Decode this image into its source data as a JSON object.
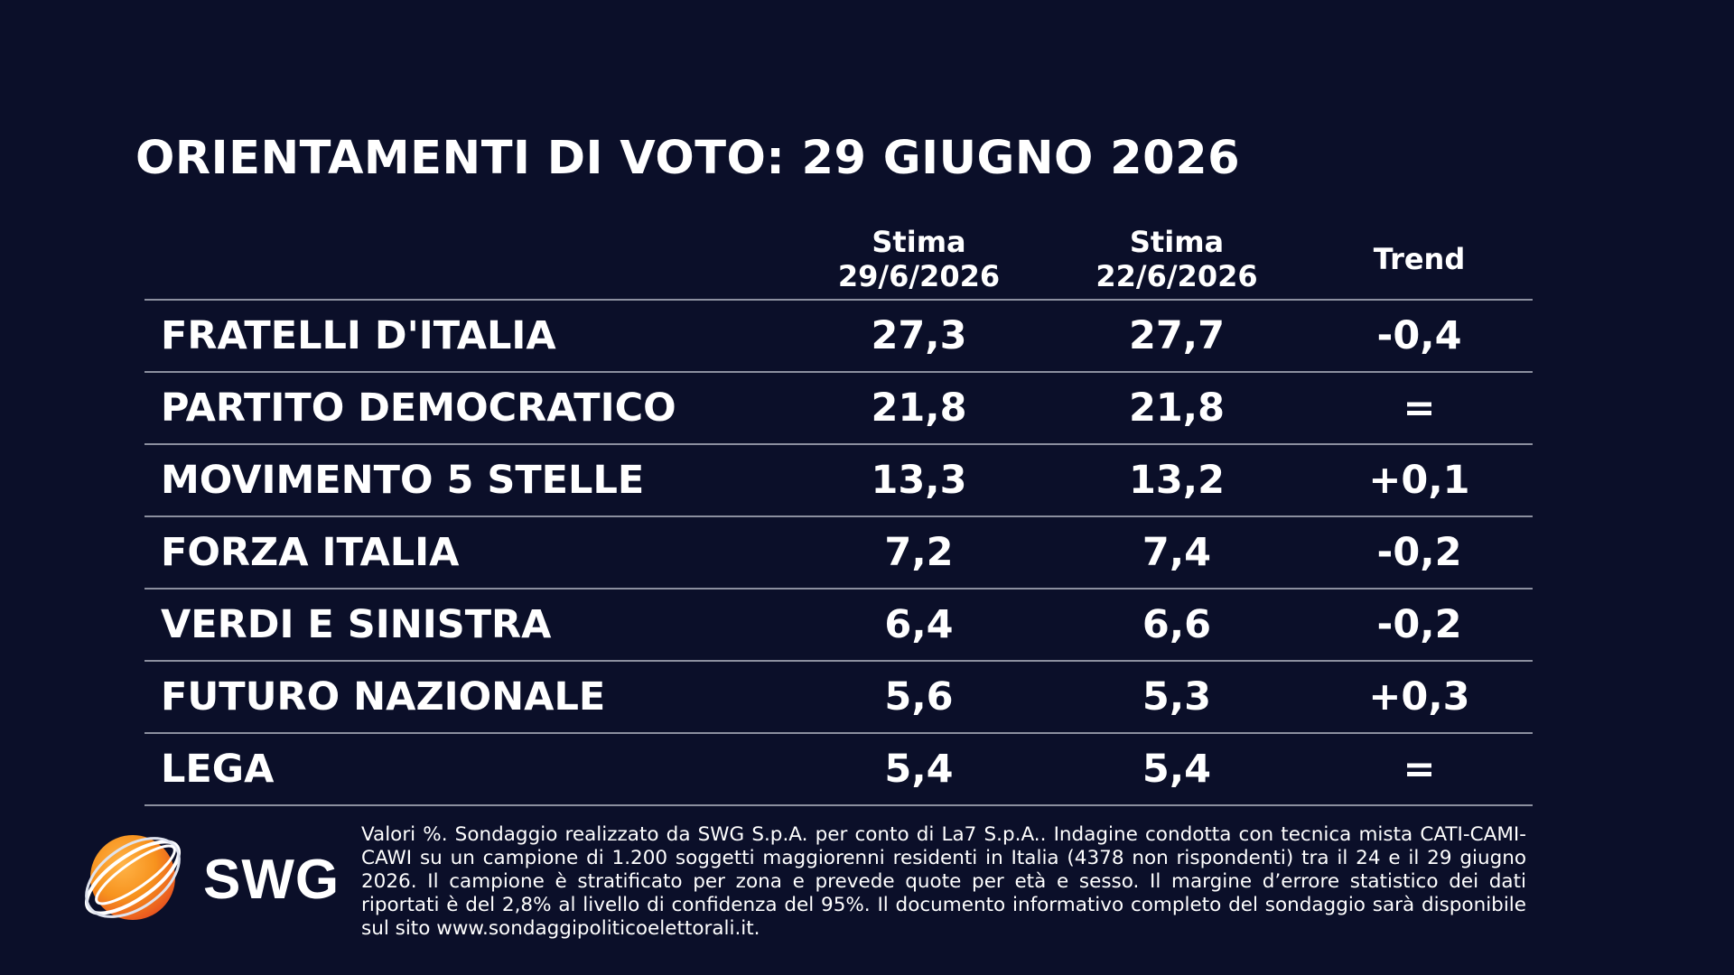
{
  "title": "ORIENTAMENTI DI VOTO: 29 GIUGNO 2026",
  "table": {
    "headers": {
      "col1": [
        "Stima",
        "29/6/2026"
      ],
      "col2": [
        "Stima",
        "22/6/2026"
      ],
      "trend": "Trend"
    },
    "rows": [
      {
        "party": "FRATELLI D'ITALIA",
        "current": "27,3",
        "previous": "27,7",
        "trend": "-0,4"
      },
      {
        "party": "PARTITO DEMOCRATICO",
        "current": "21,8",
        "previous": "21,8",
        "trend": "="
      },
      {
        "party": "MOVIMENTO 5 STELLE",
        "current": "13,3",
        "previous": "13,2",
        "trend": "+0,1"
      },
      {
        "party": "FORZA ITALIA",
        "current": "7,2",
        "previous": "7,4",
        "trend": "-0,2"
      },
      {
        "party": "VERDI E SINISTRA",
        "current": "6,4",
        "previous": "6,6",
        "trend": "-0,2"
      },
      {
        "party": "FUTURO NAZIONALE",
        "current": "5,6",
        "previous": "5,3",
        "trend": "+0,3"
      },
      {
        "party": "LEGA",
        "current": "5,4",
        "previous": "5,4",
        "trend": "="
      }
    ]
  },
  "chart_data": {
    "type": "table",
    "title": "ORIENTAMENTI DI VOTO: 29 GIUGNO 2026",
    "columns": [
      "",
      "Stima 29/6/2026",
      "Stima 22/6/2026",
      "Trend"
    ],
    "categories": [
      "FRATELLI D'ITALIA",
      "PARTITO DEMOCRATICO",
      "MOVIMENTO 5 STELLE",
      "FORZA ITALIA",
      "VERDI E SINISTRA",
      "FUTURO NAZIONALE",
      "LEGA"
    ],
    "series": [
      {
        "name": "Stima 29/6/2026",
        "values": [
          27.3,
          21.8,
          13.3,
          7.2,
          6.4,
          5.6,
          5.4
        ]
      },
      {
        "name": "Stima 22/6/2026",
        "values": [
          27.7,
          21.8,
          13.2,
          7.4,
          6.6,
          5.3,
          5.4
        ]
      },
      {
        "name": "Trend",
        "values": [
          "-0,4",
          "=",
          "+0,1",
          "-0,2",
          "-0,2",
          "+0,3",
          "="
        ]
      }
    ]
  },
  "logo": {
    "text": "SWG",
    "colors": {
      "sphere": "#f7931e",
      "sphere_dark": "#e8531f",
      "ring": "#ffffff"
    }
  },
  "footnote": "Valori %. Sondaggio realizzato da SWG S.p.A. per conto di La7 S.p.A.. Indagine condotta con tecnica mista CATI-CAMI-CAWI su un campione di 1.200 soggetti maggiorenni residenti in Italia (4378 non rispondenti) tra il 24 e il 29 giugno 2026. Il campione è stratificato per zona e prevede quote per età e sesso. Il margine d’errore statistico dei dati riportati è del 2,8% al livello di confidenza del 95%. Il documento informativo completo del sondaggio sarà disponibile sul sito www.sondaggipoliticoelettorali.it.",
  "colors": {
    "background": "#0b0f29",
    "text": "#ffffff",
    "rule": "#8c8f9f"
  }
}
